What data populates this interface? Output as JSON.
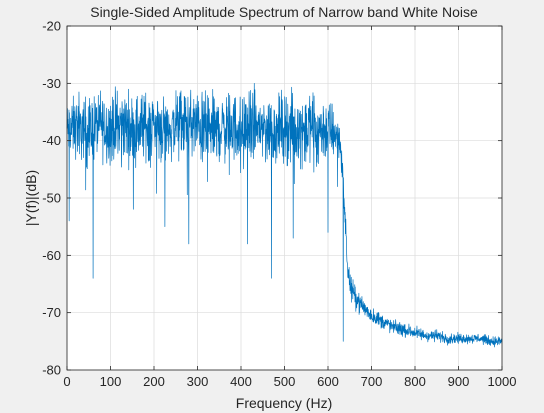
{
  "chart_data": {
    "type": "line",
    "title": "Single-Sided Amplitude Spectrum of Narrow band White Noise",
    "xlabel": "Frequency (Hz)",
    "ylabel": "|Y(f)|(dB)",
    "xlim": [
      0,
      1000
    ],
    "ylim": [
      -80,
      -20
    ],
    "xticks": [
      0,
      100,
      200,
      300,
      400,
      500,
      600,
      700,
      800,
      900,
      1000
    ],
    "yticks": [
      -80,
      -70,
      -60,
      -50,
      -40,
      -30,
      -20
    ],
    "grid": true,
    "series_color": "#0072bd",
    "series": [
      {
        "x": [
          0,
          25,
          50,
          75,
          100,
          125,
          150,
          175,
          200,
          225,
          250,
          275,
          300,
          325,
          350,
          375,
          400,
          425,
          450,
          475,
          500,
          525,
          550,
          575,
          600,
          615,
          625,
          630,
          635,
          640,
          645,
          650,
          660,
          675,
          700,
          725,
          750,
          775,
          800,
          825,
          850,
          875,
          900,
          925,
          950,
          975,
          1000
        ],
        "y": [
          -38,
          -37.5,
          -38.5,
          -37,
          -38,
          -37,
          -38,
          -37.5,
          -37,
          -38,
          -37.5,
          -37,
          -37.5,
          -38,
          -38,
          -37.5,
          -38,
          -37.5,
          -37.5,
          -38.5,
          -37.5,
          -38,
          -37.5,
          -38,
          -38,
          -38.5,
          -39.5,
          -42,
          -47,
          -55,
          -62,
          -65,
          -67,
          -68.5,
          -70.5,
          -71.5,
          -72.5,
          -73,
          -73.5,
          -74,
          -74,
          -74.5,
          -74.5,
          -74.5,
          -74.5,
          -75,
          -75
        ],
        "spread": [
          4,
          4.5,
          5,
          5,
          5,
          5,
          5,
          5,
          5,
          5,
          5,
          5,
          5,
          5,
          5,
          5,
          5,
          5,
          5,
          5,
          5,
          5,
          5,
          5,
          4.5,
          4,
          3,
          2.5,
          2,
          2,
          2,
          1.8,
          1.6,
          1.4,
          1.2,
          1.1,
          1,
          1,
          0.9,
          0.9,
          0.8,
          0.8,
          0.7,
          0.7,
          0.7,
          0.7,
          0.7
        ],
        "peaks_max": -28,
        "troughs": [
          [
            5,
            -54
          ],
          [
            60,
            -64
          ],
          [
            225,
            -55
          ],
          [
            280,
            -58
          ],
          [
            415,
            -58
          ],
          [
            470,
            -64
          ],
          [
            520,
            -57
          ],
          [
            600,
            -56
          ],
          [
            635,
            -75
          ]
        ]
      }
    ]
  }
}
